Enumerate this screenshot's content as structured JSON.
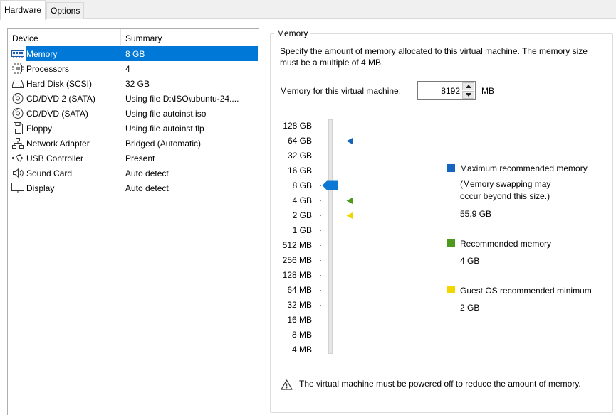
{
  "tabs": [
    {
      "label": "Hardware",
      "active": true
    },
    {
      "label": "Options",
      "active": false
    }
  ],
  "device_list": {
    "headers": {
      "device": "Device",
      "summary": "Summary"
    },
    "rows": [
      {
        "icon": "memory-icon",
        "name": "Memory",
        "summary": "8 GB",
        "selected": true
      },
      {
        "icon": "processor-icon",
        "name": "Processors",
        "summary": "4",
        "selected": false
      },
      {
        "icon": "hard-disk-icon",
        "name": "Hard Disk (SCSI)",
        "summary": "32 GB",
        "selected": false
      },
      {
        "icon": "cd-dvd-icon",
        "name": "CD/DVD 2 (SATA)",
        "summary": "Using file D:\\ISO\\ubuntu-24....",
        "selected": false
      },
      {
        "icon": "cd-dvd-icon",
        "name": "CD/DVD (SATA)",
        "summary": "Using file autoinst.iso",
        "selected": false
      },
      {
        "icon": "floppy-icon",
        "name": "Floppy",
        "summary": "Using file autoinst.flp",
        "selected": false
      },
      {
        "icon": "network-adapter-icon",
        "name": "Network Adapter",
        "summary": "Bridged (Automatic)",
        "selected": false
      },
      {
        "icon": "usb-icon",
        "name": "USB Controller",
        "summary": "Present",
        "selected": false
      },
      {
        "icon": "sound-card-icon",
        "name": "Sound Card",
        "summary": "Auto detect",
        "selected": false
      },
      {
        "icon": "display-icon",
        "name": "Display",
        "summary": "Auto detect",
        "selected": false
      }
    ]
  },
  "memory": {
    "group_title": "Memory",
    "description": "Specify the amount of memory allocated to this virtual machine. The memory size must be a multiple of 4 MB.",
    "field_label_accel": "M",
    "field_label_rest": "emory for this virtual machine:",
    "value": "8192",
    "unit": "MB",
    "scale_labels": [
      "128 GB",
      "64 GB",
      "32 GB",
      "16 GB",
      "8 GB",
      "4 GB",
      "2 GB",
      "1 GB",
      "512 MB",
      "256 MB",
      "128 MB",
      "64 MB",
      "32 MB",
      "16 MB",
      "8 MB",
      "4 MB"
    ],
    "slider_value": "8 GB",
    "markers": {
      "max_recommended": "64 GB",
      "recommended": "4 GB",
      "guest_min": "2 GB"
    },
    "legend": {
      "max": {
        "label": "Maximum recommended memory",
        "note_line1": "(Memory swapping may",
        "note_line2": "occur beyond this size.)",
        "value": "55.9 GB",
        "color": "#1565c0"
      },
      "recommended": {
        "label": "Recommended memory",
        "value": "4 GB",
        "color": "#4f9a1e"
      },
      "guest_min": {
        "label": "Guest OS recommended minimum",
        "value": "2 GB",
        "color": "#f2d600"
      }
    },
    "warning": "The virtual machine must be powered off to reduce the amount of memory.",
    "slider_color": "#0a78d4"
  }
}
